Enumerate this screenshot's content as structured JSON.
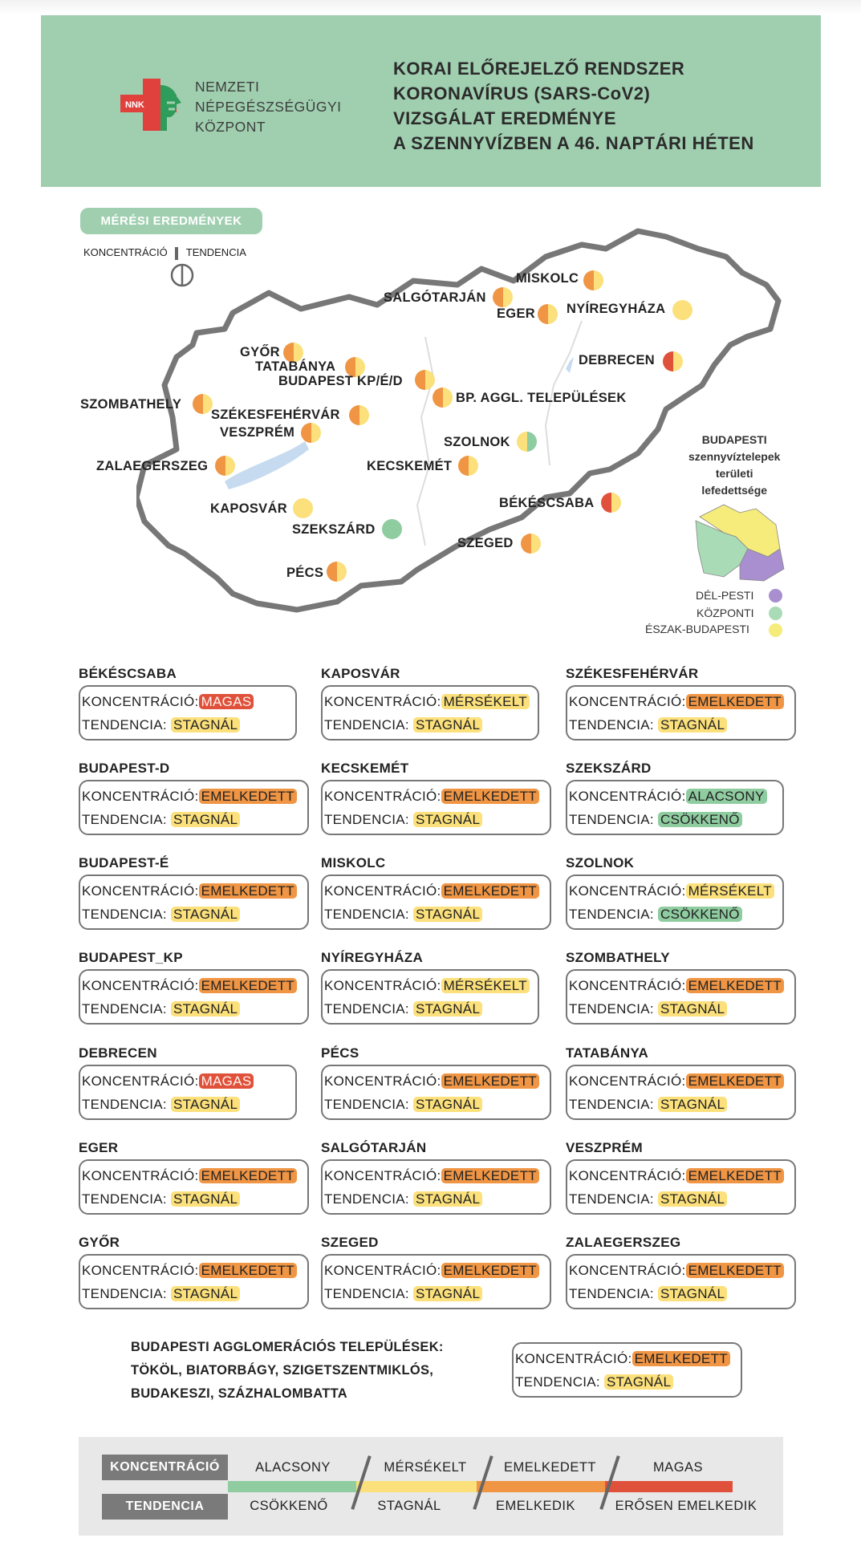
{
  "header": {
    "logo_abbr": "NNK",
    "org_lines": [
      "NEMZETI",
      "NÉPEGÉSZSÉGÜGYI",
      "KÖZPONT"
    ],
    "title_lines": [
      "KORAI ELŐREJELZŐ RENDSZER",
      "KORONAVÍRUS (SARS-CoV2)",
      "VIZSGÁLAT EREDMÉNYE",
      "A SZENNYVÍZBEN A 46. NAPTÁRI HÉTEN"
    ]
  },
  "legend_top": {
    "badge": "MÉRÉSI EREDMÉNYEK",
    "left_label": "KONCENTRÁCIÓ",
    "right_label": "TENDENCIA"
  },
  "colors": {
    "alacsony": "#8fcca0",
    "merseklet": "#fbe07b",
    "emelkedett": "#ef9544",
    "magas": "#e0513b",
    "del_pesti": "#a98fcf",
    "kozponti": "#a9dbb6",
    "eszak_budapesti": "#f5ec7c",
    "header_bg": "#a0cfb0"
  },
  "map": {
    "cities": [
      {
        "name": "MISKOLC",
        "conc": "emelkedett",
        "tend": "stagnal"
      },
      {
        "name": "SALGÓTARJÁN",
        "conc": "emelkedett",
        "tend": "stagnal"
      },
      {
        "name": "EGER",
        "conc": "emelkedett",
        "tend": "stagnal"
      },
      {
        "name": "NYÍREGYHÁZA",
        "conc": "merseklet",
        "tend": "stagnal"
      },
      {
        "name": "GYŐR",
        "conc": "emelkedett",
        "tend": "stagnal"
      },
      {
        "name": "TATABÁNYA",
        "conc": "emelkedett",
        "tend": "stagnal"
      },
      {
        "name": "BUDAPEST KP/É/D",
        "conc": "emelkedett",
        "tend": "stagnal"
      },
      {
        "name": "DEBRECEN",
        "conc": "magas",
        "tend": "stagnal"
      },
      {
        "name": "BP. AGGL. TELEPÜLÉSEK",
        "conc": "emelkedett",
        "tend": "stagnal"
      },
      {
        "name": "SZOMBATHELY",
        "conc": "emelkedett",
        "tend": "stagnal"
      },
      {
        "name": "SZÉKESFEHÉRVÁR",
        "conc": "emelkedett",
        "tend": "stagnal"
      },
      {
        "name": "VESZPRÉM",
        "conc": "emelkedett",
        "tend": "stagnal"
      },
      {
        "name": "SZOLNOK",
        "conc": "merseklet",
        "tend": "csokkeno"
      },
      {
        "name": "ZALAEGERSZEG",
        "conc": "emelkedett",
        "tend": "stagnal"
      },
      {
        "name": "KECSKEMÉT",
        "conc": "emelkedett",
        "tend": "stagnal"
      },
      {
        "name": "BÉKÉSCSABA",
        "conc": "magas",
        "tend": "stagnal"
      },
      {
        "name": "KAPOSVÁR",
        "conc": "merseklet",
        "tend": "stagnal"
      },
      {
        "name": "SZEKSZÁRD",
        "conc": "alacsony",
        "tend": "csokkeno"
      },
      {
        "name": "SZEGED",
        "conc": "emelkedett",
        "tend": "stagnal"
      },
      {
        "name": "PÉCS",
        "conc": "emelkedett",
        "tend": "stagnal"
      }
    ],
    "bp_coverage_lines": [
      "BUDAPESTI",
      "szennyvíztelepek",
      "területi",
      "lefedettsége"
    ],
    "bp_legend": [
      "DÉL-PESTI",
      "KÖZPONTI",
      "ÉSZAK-BUDAPESTI"
    ]
  },
  "cards": {
    "label_conc": "KONCENTRÁCIÓ:",
    "label_tend": "TENDENCIA:",
    "items": [
      {
        "name": "BÉKÉSCSABA",
        "conc": "MAGAS",
        "tend": "STAGNÁL",
        "conc_level": "magas",
        "tend_level": "stagnal"
      },
      {
        "name": "KAPOSVÁR",
        "conc": "MÉRSÉKELT",
        "tend": "STAGNÁL",
        "conc_level": "merseklet",
        "tend_level": "stagnal"
      },
      {
        "name": "SZÉKESFEHÉRVÁR",
        "conc": "EMELKEDETT",
        "tend": "STAGNÁL",
        "conc_level": "emelkedett",
        "tend_level": "stagnal"
      },
      {
        "name": "BUDAPEST-D",
        "conc": "EMELKEDETT",
        "tend": "STAGNÁL",
        "conc_level": "emelkedett",
        "tend_level": "stagnal"
      },
      {
        "name": "KECSKEMÉT",
        "conc": "EMELKEDETT",
        "tend": "STAGNÁL",
        "conc_level": "emelkedett",
        "tend_level": "stagnal"
      },
      {
        "name": "SZEKSZÁRD",
        "conc": "ALACSONY",
        "tend": "CSÖKKENŐ",
        "conc_level": "alacsony",
        "tend_level": "csokkeno"
      },
      {
        "name": "BUDAPEST-É",
        "conc": "EMELKEDETT",
        "tend": "STAGNÁL",
        "conc_level": "emelkedett",
        "tend_level": "stagnal"
      },
      {
        "name": "MISKOLC",
        "conc": "EMELKEDETT",
        "tend": "STAGNÁL",
        "conc_level": "emelkedett",
        "tend_level": "stagnal"
      },
      {
        "name": "SZOLNOK",
        "conc": "MÉRSÉKELT",
        "tend": "CSÖKKENŐ",
        "conc_level": "merseklet",
        "tend_level": "csokkeno"
      },
      {
        "name": "BUDAPEST_KP",
        "conc": "EMELKEDETT",
        "tend": "STAGNÁL",
        "conc_level": "emelkedett",
        "tend_level": "stagnal"
      },
      {
        "name": "NYÍREGYHÁZA",
        "conc": "MÉRSÉKELT",
        "tend": "STAGNÁL",
        "conc_level": "merseklet",
        "tend_level": "stagnal"
      },
      {
        "name": "SZOMBATHELY",
        "conc": "EMELKEDETT",
        "tend": "STAGNÁL",
        "conc_level": "emelkedett",
        "tend_level": "stagnal"
      },
      {
        "name": "DEBRECEN",
        "conc": "MAGAS",
        "tend": "STAGNÁL",
        "conc_level": "magas",
        "tend_level": "stagnal"
      },
      {
        "name": "PÉCS",
        "conc": "EMELKEDETT",
        "tend": "STAGNÁL",
        "conc_level": "emelkedett",
        "tend_level": "stagnal"
      },
      {
        "name": "TATABÁNYA",
        "conc": "EMELKEDETT",
        "tend": "STAGNÁL",
        "conc_level": "emelkedett",
        "tend_level": "stagnal"
      },
      {
        "name": "EGER",
        "conc": "EMELKEDETT",
        "tend": "STAGNÁL",
        "conc_level": "emelkedett",
        "tend_level": "stagnal"
      },
      {
        "name": "SALGÓTARJÁN",
        "conc": "EMELKEDETT",
        "tend": "STAGNÁL",
        "conc_level": "emelkedett",
        "tend_level": "stagnal"
      },
      {
        "name": "VESZPRÉM",
        "conc": "EMELKEDETT",
        "tend": "STAGNÁL",
        "conc_level": "emelkedett",
        "tend_level": "stagnal"
      },
      {
        "name": "GYŐR",
        "conc": "EMELKEDETT",
        "tend": "STAGNÁL",
        "conc_level": "emelkedett",
        "tend_level": "stagnal"
      },
      {
        "name": "SZEGED",
        "conc": "EMELKEDETT",
        "tend": "STAGNÁL",
        "conc_level": "emelkedett",
        "tend_level": "stagnal"
      },
      {
        "name": "ZALAEGERSZEG",
        "conc": "EMELKEDETT",
        "tend": "STAGNÁL",
        "conc_level": "emelkedett",
        "tend_level": "stagnal"
      }
    ]
  },
  "agglomeration": {
    "lines": [
      "BUDAPESTI AGGLOMERÁCIÓS TELEPÜLÉSEK:",
      "TÖKÖL, BIATORBÁGY, SZIGETSZENTMIKLÓS,",
      "BUDAKESZI, SZÁZHALOMBATTA"
    ],
    "conc": "EMELKEDETT",
    "tend": "STAGNÁL"
  },
  "scale": {
    "conc_tag": "KONCENTRÁCIÓ",
    "tend_tag": "TENDENCIA",
    "conc_levels": [
      "ALACSONY",
      "MÉRSÉKELT",
      "EMELKEDETT",
      "MAGAS"
    ],
    "tend_levels": [
      "CSÖKKENŐ",
      "STAGNÁL",
      "EMELKEDIK",
      "ERŐSEN EMELKEDIK"
    ]
  }
}
